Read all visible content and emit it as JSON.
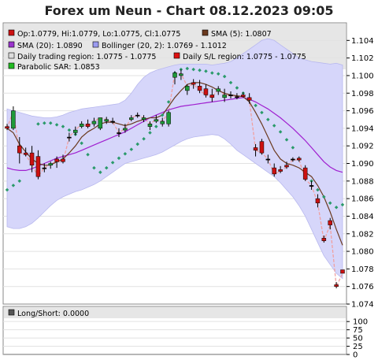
{
  "title": "Forex um Neun - Chart 08.12.2023 09:05",
  "legend": [
    {
      "label": "Op:1.0779, Hi:1.0779, Lo:1.0775, Cl:1.0775",
      "color": "#cc1111"
    },
    {
      "label": "SMA (5): 1.0807",
      "color": "#6b3a1f"
    },
    {
      "label": "SMA (20): 1.0890",
      "color": "#9933cc"
    },
    {
      "label": "Bollinger (20, 2): 1.0769 - 1.1012",
      "color": "#9b9bf0"
    },
    {
      "label": "Daily trading region: 1.0775 - 1.0775",
      "color": "#dddddd"
    },
    {
      "label": "Daily S/L region: 1.0775 - 1.0775",
      "color": "#dd1111"
    },
    {
      "label": "Parabolic SAR: 1.0853",
      "color": "#22bb22"
    }
  ],
  "lower_legend": {
    "label": "Long/Short: 0.0000",
    "color": "#555555"
  },
  "chart_data": [
    {
      "type": "line",
      "title": "Forex um Neun - Chart 08.12.2023 09:05",
      "ylim": [
        1.074,
        1.106
      ],
      "yticks": [
        "1.104",
        "1.102",
        "1.100",
        "1.098",
        "1.096",
        "1.094",
        "1.092",
        "1.090",
        "1.088",
        "1.086",
        "1.084",
        "1.082",
        "1.080",
        "1.078",
        "1.076",
        "1.074"
      ],
      "candles": [
        {
          "o": 1.0942,
          "h": 1.0945,
          "l": 1.0938,
          "c": 1.094
        },
        {
          "o": 1.094,
          "h": 1.0965,
          "l": 1.0938,
          "c": 1.096
        },
        {
          "o": 1.092,
          "h": 1.093,
          "l": 1.09,
          "c": 1.0912
        },
        {
          "o": 1.0912,
          "h": 1.0918,
          "l": 1.0908,
          "c": 1.091
        },
        {
          "o": 1.0912,
          "h": 1.092,
          "l": 1.089,
          "c": 1.0898
        },
        {
          "o": 1.0908,
          "h": 1.0915,
          "l": 1.0882,
          "c": 1.0885
        },
        {
          "o": 1.0895,
          "h": 1.09,
          "l": 1.089,
          "c": 1.0895
        },
        {
          "o": 1.0898,
          "h": 1.0902,
          "l": 1.0894,
          "c": 1.09
        },
        {
          "o": 1.0905,
          "h": 1.0908,
          "l": 1.0895,
          "c": 1.0902
        },
        {
          "o": 1.0905,
          "h": 1.091,
          "l": 1.09,
          "c": 1.0902
        },
        {
          "o": 1.093,
          "h": 1.0935,
          "l": 1.0925,
          "c": 1.093
        },
        {
          "o": 1.0935,
          "h": 1.0942,
          "l": 1.0932,
          "c": 1.0938
        },
        {
          "o": 1.0942,
          "h": 1.0948,
          "l": 1.094,
          "c": 1.0945
        },
        {
          "o": 1.0945,
          "h": 1.095,
          "l": 1.094,
          "c": 1.0942
        },
        {
          "o": 1.0945,
          "h": 1.0952,
          "l": 1.0942,
          "c": 1.0948
        },
        {
          "o": 1.094,
          "h": 1.095,
          "l": 1.0938,
          "c": 1.0952
        },
        {
          "o": 1.0948,
          "h": 1.0953,
          "l": 1.0945,
          "c": 1.095
        },
        {
          "o": 1.0948,
          "h": 1.0952,
          "l": 1.0945,
          "c": 1.0947
        },
        {
          "o": 1.0935,
          "h": 1.094,
          "l": 1.093,
          "c": 1.0935
        },
        {
          "o": 1.0938,
          "h": 1.0945,
          "l": 1.0935,
          "c": 1.094
        },
        {
          "o": 1.095,
          "h": 1.0955,
          "l": 1.0948,
          "c": 1.0952
        },
        {
          "o": 1.0955,
          "h": 1.0958,
          "l": 1.0952,
          "c": 1.0955
        },
        {
          "o": 1.095,
          "h": 1.0955,
          "l": 1.0947,
          "c": 1.0952
        },
        {
          "o": 1.0942,
          "h": 1.0948,
          "l": 1.0938,
          "c": 1.0945
        },
        {
          "o": 1.0948,
          "h": 1.0955,
          "l": 1.0946,
          "c": 1.095
        },
        {
          "o": 1.0945,
          "h": 1.0952,
          "l": 1.0942,
          "c": 1.0948
        },
        {
          "o": 1.0945,
          "h": 1.096,
          "l": 1.0942,
          "c": 1.0958
        },
        {
          "o": 1.0998,
          "h": 1.1005,
          "l": 1.099,
          "c": 1.1003
        },
        {
          "o": 1.1,
          "h": 1.1007,
          "l": 1.0995,
          "c": 1.1002
        },
        {
          "o": 1.0983,
          "h": 1.099,
          "l": 1.0978,
          "c": 1.0988
        },
        {
          "o": 1.0992,
          "h": 1.0996,
          "l": 1.0985,
          "c": 1.099
        },
        {
          "o": 1.0988,
          "h": 1.0995,
          "l": 1.098,
          "c": 1.0983
        },
        {
          "o": 1.0985,
          "h": 1.099,
          "l": 1.0975,
          "c": 1.0978
        },
        {
          "o": 1.0978,
          "h": 1.0985,
          "l": 1.097,
          "c": 1.0975
        },
        {
          "o": 1.0982,
          "h": 1.0988,
          "l": 1.0978,
          "c": 1.0985
        },
        {
          "o": 1.0975,
          "h": 1.0985,
          "l": 1.097,
          "c": 1.0978
        },
        {
          "o": 1.0978,
          "h": 1.0982,
          "l": 1.0974,
          "c": 1.0977
        },
        {
          "o": 1.0976,
          "h": 1.098,
          "l": 1.0973,
          "c": 1.0976
        },
        {
          "o": 1.0978,
          "h": 1.0981,
          "l": 1.0975,
          "c": 1.0976
        },
        {
          "o": 1.0975,
          "h": 1.098,
          "l": 1.0968,
          "c": 1.0972
        },
        {
          "o": 1.0918,
          "h": 1.0922,
          "l": 1.0908,
          "c": 1.0915
        },
        {
          "o": 1.0925,
          "h": 1.0928,
          "l": 1.091,
          "c": 1.0912
        },
        {
          "o": 1.0905,
          "h": 1.091,
          "l": 1.09,
          "c": 1.0905
        },
        {
          "o": 1.0895,
          "h": 1.09,
          "l": 1.0885,
          "c": 1.0888
        },
        {
          "o": 1.0893,
          "h": 1.0897,
          "l": 1.0889,
          "c": 1.0891
        },
        {
          "o": 1.0898,
          "h": 1.0902,
          "l": 1.0894,
          "c": 1.0896
        },
        {
          "o": 1.0905,
          "h": 1.0907,
          "l": 1.0902,
          "c": 1.0904
        },
        {
          "o": 1.0906,
          "h": 1.0908,
          "l": 1.0902,
          "c": 1.0904
        },
        {
          "o": 1.0895,
          "h": 1.0898,
          "l": 1.088,
          "c": 1.0882
        },
        {
          "o": 1.0875,
          "h": 1.088,
          "l": 1.087,
          "c": 1.0875
        },
        {
          "o": 1.086,
          "h": 1.0865,
          "l": 1.085,
          "c": 1.0855
        },
        {
          "o": 1.0815,
          "h": 1.0818,
          "l": 1.081,
          "c": 1.0812
        },
        {
          "o": 1.0835,
          "h": 1.0838,
          "l": 1.0825,
          "c": 1.083
        },
        {
          "o": 1.0762,
          "h": 1.0765,
          "l": 1.0758,
          "c": 1.076
        },
        {
          "o": 1.0779,
          "h": 1.0779,
          "l": 1.0775,
          "c": 1.0775
        }
      ],
      "sma5": [
        1.094,
        1.0935,
        1.0922,
        1.0913,
        1.0905,
        1.09,
        1.0898,
        1.0898,
        1.0902,
        1.0905,
        1.0912,
        1.092,
        1.093,
        1.0936,
        1.094,
        1.0945,
        1.0947,
        1.0947,
        1.0945,
        1.0943,
        1.0945,
        1.0948,
        1.095,
        1.0952,
        1.0952,
        1.0955,
        1.0965,
        1.0975,
        1.0983,
        1.099,
        1.0992,
        1.0992,
        1.099,
        1.0987,
        1.0983,
        1.098,
        1.0978,
        1.0977,
        1.0976,
        1.097,
        1.0958,
        1.0945,
        1.093,
        1.0915,
        1.0905,
        1.09,
        1.0898,
        1.0895,
        1.089,
        1.0885,
        1.0875,
        1.0862,
        1.0845,
        1.0825,
        1.0807
      ],
      "sma20": [
        1.0895,
        1.0893,
        1.0892,
        1.0892,
        1.0894,
        1.0897,
        1.09,
        1.0903,
        1.0906,
        1.0908,
        1.091,
        1.0912,
        1.0915,
        1.0918,
        1.0921,
        1.0924,
        1.0927,
        1.093,
        1.0933,
        1.0936,
        1.094,
        1.0944,
        1.0948,
        1.0952,
        1.0955,
        1.0958,
        1.0961,
        1.0963,
        1.0965,
        1.0966,
        1.0967,
        1.0968,
        1.0969,
        1.097,
        1.0971,
        1.0972,
        1.0973,
        1.0974,
        1.0975,
        1.0973,
        1.097,
        1.0966,
        1.0962,
        1.0957,
        1.0952,
        1.0946,
        1.094,
        1.0933,
        1.0926,
        1.0918,
        1.091,
        1.0902,
        1.0896,
        1.0892,
        1.089
      ],
      "boll_upper": [
        1.0962,
        1.096,
        1.0958,
        1.0956,
        1.0954,
        1.0953,
        1.0952,
        1.0952,
        1.0953,
        1.0955,
        1.0958,
        1.096,
        1.0962,
        1.0963,
        1.0964,
        1.0965,
        1.0966,
        1.0967,
        1.0968,
        1.0972,
        1.098,
        1.099,
        1.0998,
        1.1003,
        1.1006,
        1.1008,
        1.101,
        1.1012,
        1.1013,
        1.1013,
        1.1013,
        1.1013,
        1.1013,
        1.1012,
        1.1013,
        1.1014,
        1.1016,
        1.102,
        1.1025,
        1.103,
        1.1035,
        1.104,
        1.1042,
        1.104,
        1.1035,
        1.103,
        1.1025,
        1.102,
        1.1018,
        1.1016,
        1.1015,
        1.1014,
        1.1013,
        1.1014,
        1.1012
      ],
      "boll_lower": [
        1.0828,
        1.0826,
        1.0826,
        1.0828,
        1.0832,
        1.0838,
        1.0845,
        1.0852,
        1.0858,
        1.0862,
        1.0865,
        1.0868,
        1.087,
        1.0873,
        1.0876,
        1.088,
        1.0885,
        1.089,
        1.0895,
        1.09,
        1.0902,
        1.0904,
        1.0906,
        1.0908,
        1.091,
        1.0913,
        1.0917,
        1.0921,
        1.0925,
        1.0928,
        1.093,
        1.0931,
        1.0932,
        1.0933,
        1.0932,
        1.0928,
        1.0922,
        1.0915,
        1.091,
        1.0905,
        1.09,
        1.0895,
        1.089,
        1.0885,
        1.0878,
        1.087,
        1.0862,
        1.0852,
        1.084,
        1.0825,
        1.081,
        1.0795,
        1.0785,
        1.0775,
        1.0769
      ],
      "sar": [
        1.087,
        1.0875,
        1.088,
        null,
        null,
        1.0945,
        1.0946,
        1.0946,
        1.0944,
        1.0942,
        1.0938,
        1.0933,
        1.0923,
        1.091,
        1.0895,
        1.089,
        1.0895,
        1.0901,
        1.0906,
        1.0911,
        1.0916,
        1.0922,
        1.0928,
        1.0935,
        1.0942,
        1.0955,
        1.097,
        1.1003,
        1.1007,
        1.1008,
        1.1007,
        1.1006,
        1.1005,
        1.1003,
        1.1002,
        1.0999,
        1.0992,
        1.0986,
        1.098,
        1.0973,
        1.0966,
        1.0958,
        1.095,
        1.0943,
        1.0936,
        1.0927,
        1.0918,
        1.0905,
        1.0892,
        1.088,
        1.087,
        1.0862,
        1.0855,
        1.085,
        1.0853
      ]
    },
    {
      "type": "bar",
      "title": "Long/Short: 0.0000",
      "ylim": [
        0,
        110
      ],
      "yticks": [
        "100",
        "75",
        "50",
        "25",
        "0"
      ],
      "values": [
        0
      ]
    }
  ]
}
